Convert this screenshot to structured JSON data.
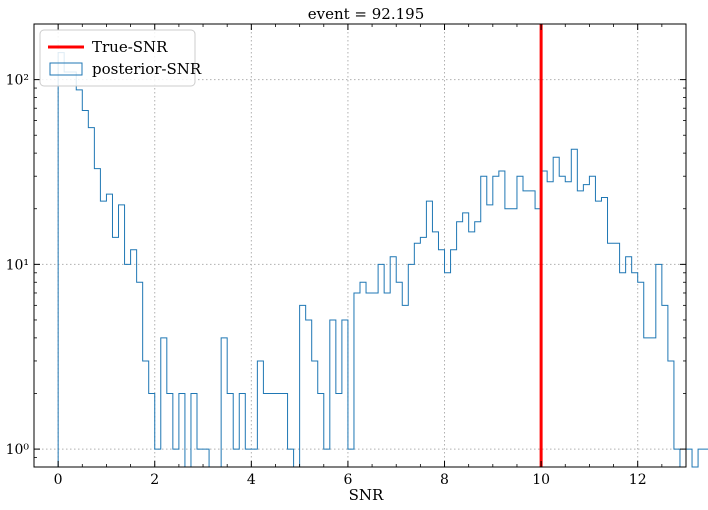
{
  "chart_data": {
    "type": "histogram",
    "title": "event = 92.195",
    "xlabel": "SNR",
    "ylabel": "",
    "yscale": "log",
    "xlim": [
      -0.5,
      13.0
    ],
    "ylim": [
      0.8,
      200
    ],
    "grid": true,
    "legend_position": "top-left",
    "legend": [
      "True-SNR",
      "posterior-SNR"
    ],
    "x_ticks": [
      "0",
      "2",
      "4",
      "6",
      "8",
      "10",
      "12"
    ],
    "y_ticks": [
      "10⁰",
      "10¹",
      "10²"
    ],
    "true_snr": 10.0,
    "bin_width": 0.125,
    "bin_start": 0.0,
    "counts": [
      140,
      110,
      110,
      88,
      68,
      55,
      33,
      22,
      24,
      14,
      21,
      10,
      12,
      8,
      3,
      2,
      1,
      4,
      2,
      1,
      2,
      0,
      2,
      1,
      1,
      0,
      0,
      4,
      2,
      1,
      2,
      1,
      1,
      3,
      2,
      2,
      2,
      2,
      1,
      0,
      6,
      5,
      3,
      2,
      1,
      5,
      2,
      5,
      1,
      7,
      8,
      7,
      7,
      10,
      7,
      11,
      8,
      6,
      10,
      13,
      14,
      22,
      15,
      12,
      9,
      12,
      17,
      19,
      15,
      17,
      30,
      21,
      30,
      32,
      20,
      20,
      30,
      25,
      25,
      20,
      32,
      28,
      38,
      30,
      28,
      42,
      25,
      27,
      30,
      22,
      23,
      13,
      13,
      9,
      11,
      9,
      8,
      4,
      4,
      10,
      6,
      3,
      1,
      0,
      1,
      0,
      1,
      1
    ],
    "colors": {
      "true_snr": "#ff0000",
      "posterior": "#1f77b4",
      "grid": "#b0b0b0"
    }
  }
}
